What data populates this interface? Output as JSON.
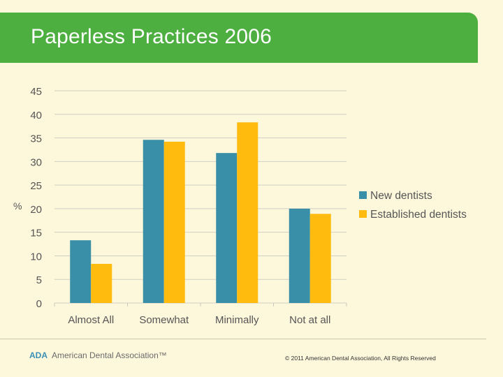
{
  "slide": {
    "title": "Paperless Practices 2006"
  },
  "chart_data": {
    "type": "bar",
    "title": "",
    "xlabel": "",
    "ylabel": "%",
    "ylim": [
      0,
      45
    ],
    "yticks": [
      0,
      5,
      10,
      15,
      20,
      25,
      30,
      35,
      40,
      45
    ],
    "categories": [
      "Almost All",
      "Somewhat",
      "Minimally",
      "Not at all"
    ],
    "series": [
      {
        "name": "New dentists",
        "color": "#3a8fa8",
        "values": [
          13.3,
          34.6,
          31.8,
          20.0
        ]
      },
      {
        "name": "Established dentists",
        "color": "#ffbb0e",
        "values": [
          8.3,
          34.2,
          38.3,
          18.9
        ]
      }
    ],
    "grid": true,
    "legend": "right"
  },
  "footer": {
    "logo_abbr": "ADA",
    "logo_name": "American Dental Association™",
    "copyright": "© 2011 American Dental Association, All Rights Reserved"
  }
}
